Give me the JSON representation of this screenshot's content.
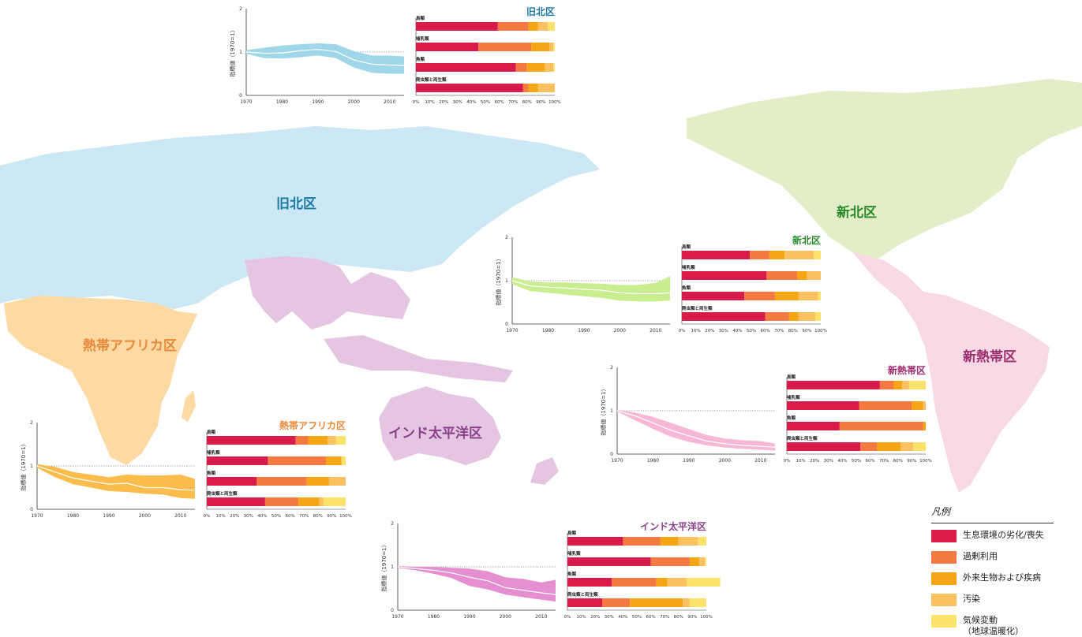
{
  "map": {
    "labels": [
      {
        "key": "palearctic",
        "text": "旧北区",
        "color": "#1a7aa6"
      },
      {
        "key": "nearctic",
        "text": "新北区",
        "color": "#2a8a2a"
      },
      {
        "key": "afrotropical",
        "text": "熱帯アフリカ区",
        "color": "#e8893a"
      },
      {
        "key": "indopacific",
        "text": "インド太平洋区",
        "color": "#8a3f8a"
      },
      {
        "key": "neotropical",
        "text": "新熱帯区",
        "color": "#9c2c6e"
      }
    ],
    "fills": {
      "palearctic": "#cce8f4",
      "nearctic": "#e3eec9",
      "afrotropical": "#fdd9a3",
      "indopacific": "#e4c5e2",
      "neotropical": "#f8d9e6",
      "other": "#dff0f8"
    }
  },
  "legend": {
    "title": "凡例",
    "items": [
      {
        "label": "生息環境の劣化/喪失",
        "color": "#d81b4b"
      },
      {
        "label": "過剰利用",
        "color": "#f47a42"
      },
      {
        "label": "外来生物および疾病",
        "color": "#f6a515"
      },
      {
        "label": "汚染",
        "color": "#fbc060"
      },
      {
        "label": "気候変動\n（地球温暖化）",
        "color": "#fbe26b"
      }
    ]
  },
  "chart_data": [
    {
      "type": "area",
      "region": "旧北区",
      "title": "旧北区",
      "title_color": "#1a7aa6",
      "band_color": "#9fd6ea",
      "ylabel": "指標値（1970=1）",
      "ylim": [
        0,
        2
      ],
      "yticks": [
        "0",
        "1",
        "2"
      ],
      "xlim": [
        1970,
        2014
      ],
      "xticks": [
        "1970",
        "1980",
        "1990",
        "2000",
        "2010"
      ],
      "x": [
        1970,
        1975,
        1980,
        1985,
        1990,
        1995,
        2000,
        2005,
        2010,
        2014
      ],
      "y": [
        1.0,
        0.97,
        0.98,
        1.03,
        1.06,
        1.01,
        0.82,
        0.72,
        0.7,
        0.69
      ],
      "upper": [
        1.04,
        1.1,
        1.15,
        1.18,
        1.2,
        1.18,
        1.02,
        0.92,
        0.92,
        0.9
      ],
      "lower": [
        0.96,
        0.86,
        0.85,
        0.88,
        0.92,
        0.86,
        0.64,
        0.52,
        0.5,
        0.5
      ],
      "bar_chart": {
        "type": "bar",
        "categories": [
          "鳥類",
          "哺乳類",
          "魚類",
          "爬虫類と両生類"
        ],
        "xticks": [
          "0%",
          "10%",
          "20%",
          "30%",
          "40%",
          "50%",
          "60%",
          "70%",
          "80%",
          "90%",
          "100%"
        ],
        "series": [
          {
            "name": "生息環境の劣化/喪失",
            "values": [
              59,
              45,
              72,
              77
            ]
          },
          {
            "name": "過剰利用",
            "values": [
              22,
              38,
              8,
              4
            ]
          },
          {
            "name": "外来生物および疾病",
            "values": [
              7,
              13,
              13,
              7
            ]
          },
          {
            "name": "汚染",
            "values": [
              7,
              3,
              6,
              12
            ]
          },
          {
            "name": "気候変動（地球温暖化）",
            "values": [
              5,
              1,
              1,
              0
            ]
          }
        ]
      }
    },
    {
      "type": "area",
      "region": "新北区",
      "title": "新北区",
      "title_color": "#2a8a2a",
      "band_color": "#c9ed8f",
      "ylabel": "指標値（1970=1）",
      "ylim": [
        0,
        2
      ],
      "yticks": [
        "0",
        "1",
        "2"
      ],
      "xlim": [
        1970,
        2014
      ],
      "xticks": [
        "1970",
        "1980",
        "1990",
        "2000",
        "2010"
      ],
      "x": [
        1970,
        1975,
        1980,
        1985,
        1990,
        1995,
        2000,
        2005,
        2010,
        2014
      ],
      "y": [
        1.0,
        0.88,
        0.85,
        0.83,
        0.8,
        0.78,
        0.72,
        0.7,
        0.7,
        0.72
      ],
      "upper": [
        1.08,
        0.98,
        0.96,
        0.96,
        0.94,
        0.93,
        0.9,
        0.9,
        0.95,
        1.1
      ],
      "lower": [
        0.92,
        0.76,
        0.72,
        0.68,
        0.64,
        0.6,
        0.54,
        0.52,
        0.52,
        0.54
      ],
      "bar_chart": {
        "type": "bar",
        "categories": [
          "鳥類",
          "哺乳類",
          "魚類",
          "爬虫類と両生類"
        ],
        "xticks": [
          "0%",
          "10%",
          "20%",
          "30%",
          "40%",
          "50%",
          "60%",
          "70%",
          "80%",
          "90%",
          "100%"
        ],
        "series": [
          {
            "name": "生息環境の劣化/喪失",
            "values": [
              49,
              61,
              45,
              60
            ]
          },
          {
            "name": "過剰利用",
            "values": [
              14,
              22,
              22,
              17
            ]
          },
          {
            "name": "外来生物および疾病",
            "values": [
              11,
              7,
              17,
              7
            ]
          },
          {
            "name": "汚染",
            "values": [
              21,
              10,
              14,
              12
            ]
          },
          {
            "name": "気候変動（地球温暖化）",
            "values": [
              5,
              0,
              2,
              4
            ]
          }
        ]
      }
    },
    {
      "type": "area",
      "region": "熱帯アフリカ区",
      "title": "熱帯アフリカ区",
      "title_color": "#e8893a",
      "band_color": "#fbbc4c",
      "ylabel": "指標値（1970=1）",
      "ylim": [
        0,
        2
      ],
      "yticks": [
        "0",
        "1",
        "2"
      ],
      "xlim": [
        1970,
        2014
      ],
      "xticks": [
        "1970",
        "1980",
        "1990",
        "2000",
        "2010"
      ],
      "x": [
        1970,
        1975,
        1980,
        1985,
        1990,
        1995,
        2000,
        2005,
        2010,
        2014
      ],
      "y": [
        1.0,
        0.86,
        0.72,
        0.65,
        0.58,
        0.6,
        0.5,
        0.5,
        0.45,
        0.44
      ],
      "upper": [
        1.04,
        0.98,
        0.86,
        0.8,
        0.74,
        0.8,
        0.78,
        0.78,
        0.8,
        0.7
      ],
      "lower": [
        0.96,
        0.74,
        0.58,
        0.5,
        0.42,
        0.4,
        0.36,
        0.34,
        0.26,
        0.24
      ],
      "bar_chart": {
        "type": "bar",
        "categories": [
          "鳥類",
          "哺乳類",
          "魚類",
          "爬虫類と両生類"
        ],
        "xticks": [
          "0%",
          "10%",
          "20%",
          "30%",
          "40%",
          "50%",
          "60%",
          "70%",
          "80%",
          "90%",
          "100%"
        ],
        "series": [
          {
            "name": "生息環境の劣化/喪失",
            "values": [
              64,
              44,
              36,
              42
            ]
          },
          {
            "name": "過剰利用",
            "values": [
              9,
              42,
              36,
              24
            ]
          },
          {
            "name": "外来生物および疾病",
            "values": [
              14,
              11,
              16,
              15
            ]
          },
          {
            "name": "汚染",
            "values": [
              6,
              0,
              12,
              3
            ]
          },
          {
            "name": "気候変動（地球温暖化）",
            "values": [
              7,
              3,
              0,
              16
            ]
          }
        ]
      }
    },
    {
      "type": "area",
      "region": "新熱帯区",
      "title": "新熱帯区",
      "title_color": "#9c2c6e",
      "band_color": "#f7b8d6",
      "ylabel": "指標値（1970=1）",
      "ylim": [
        0,
        2
      ],
      "yticks": [
        "0",
        "1",
        "2"
      ],
      "xlim": [
        1970,
        2014
      ],
      "xticks": [
        "1970",
        "1980",
        "1990",
        "2000",
        "2010"
      ],
      "x": [
        1970,
        1975,
        1980,
        1985,
        1990,
        1995,
        2000,
        2005,
        2010,
        2014
      ],
      "y": [
        1.0,
        0.88,
        0.72,
        0.55,
        0.42,
        0.3,
        0.24,
        0.2,
        0.18,
        0.16
      ],
      "upper": [
        1.02,
        0.96,
        0.86,
        0.72,
        0.58,
        0.44,
        0.36,
        0.32,
        0.3,
        0.24
      ],
      "lower": [
        0.98,
        0.78,
        0.58,
        0.4,
        0.28,
        0.2,
        0.15,
        0.12,
        0.1,
        0.08
      ],
      "bar_chart": {
        "type": "bar",
        "categories": [
          "鳥類",
          "哺乳類",
          "魚類",
          "爬虫類と両生類"
        ],
        "xticks": [
          "0%",
          "10%",
          "20%",
          "30%",
          "40%",
          "50%",
          "60%",
          "70%",
          "80%",
          "90%",
          "100%"
        ],
        "series": [
          {
            "name": "生息環境の劣化/喪失",
            "values": [
              67,
              52,
              38,
              53
            ]
          },
          {
            "name": "過剰利用",
            "values": [
              10,
              38,
              60,
              12
            ]
          },
          {
            "name": "外来生物および疾病",
            "values": [
              6,
              8,
              2,
              17
            ]
          },
          {
            "name": "汚染",
            "values": [
              5,
              2,
              0,
              9
            ]
          },
          {
            "name": "気候変動（地球温暖化）",
            "values": [
              12,
              0,
              0,
              9
            ]
          }
        ]
      }
    },
    {
      "type": "area",
      "region": "インド太平洋区",
      "title": "インド太平洋区",
      "title_color": "#8a3f8a",
      "band_color": "#e68fd0",
      "ylabel": "指標値（1970=1）",
      "ylim": [
        0,
        2
      ],
      "yticks": [
        "0",
        "1",
        "2"
      ],
      "xlim": [
        1970,
        2014
      ],
      "xticks": [
        "1970",
        "1980",
        "1990",
        "2000",
        "2010"
      ],
      "x": [
        1970,
        1975,
        1980,
        1985,
        1990,
        1995,
        2000,
        2005,
        2010,
        2014
      ],
      "y": [
        1.0,
        0.96,
        0.92,
        0.86,
        0.76,
        0.68,
        0.52,
        0.46,
        0.4,
        0.36
      ],
      "upper": [
        1.02,
        1.0,
        1.0,
        0.98,
        0.96,
        0.9,
        0.76,
        0.72,
        0.64,
        0.7
      ],
      "lower": [
        0.98,
        0.92,
        0.84,
        0.74,
        0.56,
        0.48,
        0.36,
        0.3,
        0.24,
        0.2
      ],
      "bar_chart": {
        "type": "bar",
        "categories": [
          "鳥類",
          "哺乳類",
          "魚類",
          "爬虫類と両生類"
        ],
        "xticks": [
          "0%",
          "10%",
          "20%",
          "30%",
          "40%",
          "50%",
          "60%",
          "70%",
          "80%",
          "90%",
          "100%"
        ],
        "series": [
          {
            "name": "生息環境の劣化/喪失",
            "values": [
              40,
              60,
              32,
              25
            ]
          },
          {
            "name": "過剰利用",
            "values": [
              27,
              28,
              32,
              20
            ]
          },
          {
            "name": "外来生物および疾病",
            "values": [
              13,
              7,
              8,
              38
            ]
          },
          {
            "name": "汚染",
            "values": [
              14,
              4,
              14,
              5
            ]
          },
          {
            "name": "気候変動（地球温暖化）",
            "values": [
              6,
              1,
              24,
              12
            ]
          }
        ]
      }
    }
  ]
}
